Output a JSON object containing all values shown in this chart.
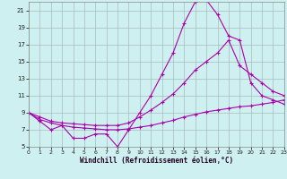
{
  "xlabel": "Windchill (Refroidissement éolien,°C)",
  "bg_color": "#cef0f0",
  "grid_color": "#aabbbb",
  "line_color": "#aa00aa",
  "xmin": 0,
  "xmax": 23,
  "ymin": 5,
  "ymax": 22,
  "yticks": [
    5,
    7,
    9,
    11,
    13,
    15,
    17,
    19,
    21
  ],
  "xticks": [
    0,
    1,
    2,
    3,
    4,
    5,
    6,
    7,
    8,
    9,
    10,
    11,
    12,
    13,
    14,
    15,
    16,
    17,
    18,
    19,
    20,
    21,
    22,
    23
  ],
  "line1_x": [
    0,
    1,
    2,
    3,
    4,
    5,
    6,
    7,
    8,
    9,
    10,
    11,
    12,
    13,
    14,
    15,
    16,
    17,
    18,
    19,
    20,
    21,
    22,
    23
  ],
  "line1_y": [
    9.0,
    8.0,
    7.0,
    7.5,
    6.0,
    6.0,
    6.5,
    6.5,
    5.0,
    7.0,
    9.0,
    11.0,
    13.5,
    16.0,
    19.5,
    22.0,
    22.2,
    20.5,
    18.0,
    17.5,
    12.5,
    11.0,
    10.5,
    10.0
  ],
  "line2_x": [
    0,
    1,
    2,
    3,
    4,
    5,
    6,
    7,
    8,
    9,
    10,
    11,
    12,
    13,
    14,
    15,
    16,
    17,
    18,
    19,
    20,
    21,
    22,
    23
  ],
  "line2_y": [
    9.0,
    8.2,
    7.8,
    7.5,
    7.3,
    7.2,
    7.1,
    7.0,
    7.0,
    7.1,
    7.3,
    7.5,
    7.8,
    8.1,
    8.5,
    8.8,
    9.1,
    9.3,
    9.5,
    9.7,
    9.8,
    10.0,
    10.2,
    10.5
  ],
  "line3_x": [
    0,
    1,
    2,
    3,
    4,
    5,
    6,
    7,
    8,
    9,
    10,
    11,
    12,
    13,
    14,
    15,
    16,
    17,
    18,
    19,
    20,
    21,
    22,
    23
  ],
  "line3_y": [
    9.0,
    8.5,
    8.0,
    7.8,
    7.7,
    7.6,
    7.5,
    7.5,
    7.5,
    7.8,
    8.5,
    9.3,
    10.2,
    11.2,
    12.5,
    14.0,
    15.0,
    16.0,
    17.5,
    14.5,
    13.5,
    12.5,
    11.5,
    11.0
  ]
}
